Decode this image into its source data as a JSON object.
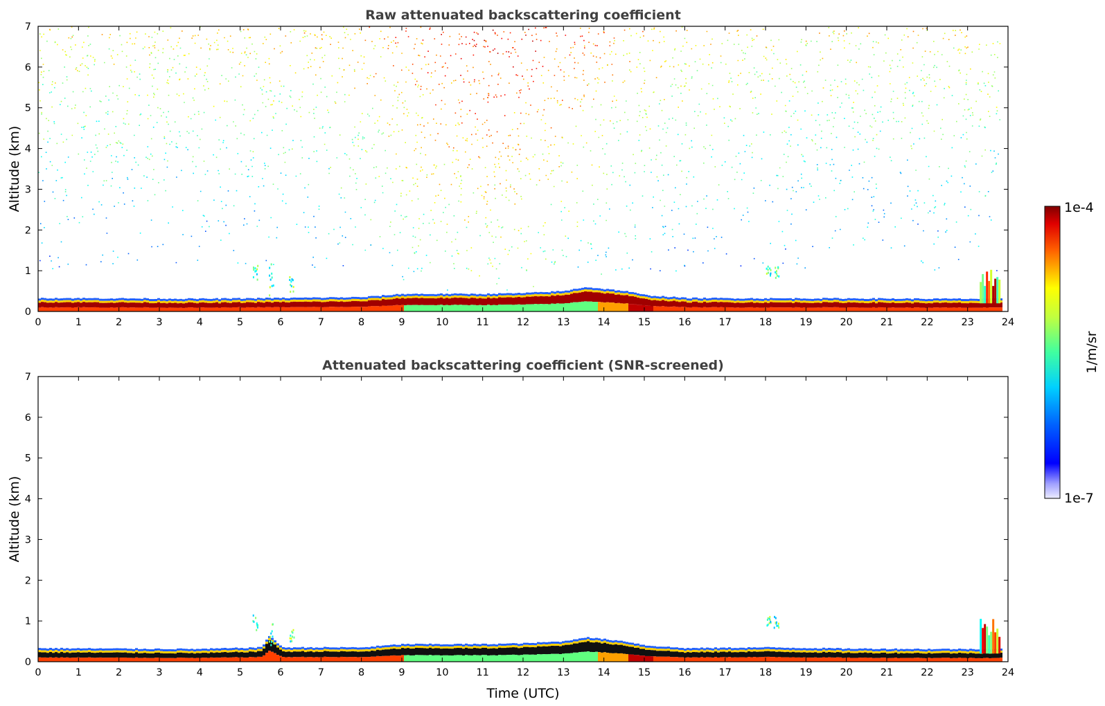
{
  "chart_data": [
    {
      "type": "heatmap",
      "id": "raw",
      "title": "Raw attenuated backscattering coefficient",
      "xlabel": "",
      "ylabel": "Altitude (km)",
      "xlim": [
        0,
        24
      ],
      "ylim": [
        0,
        7
      ],
      "xticks": [
        "0",
        "1",
        "2",
        "3",
        "4",
        "5",
        "6",
        "7",
        "8",
        "9",
        "10",
        "11",
        "12",
        "13",
        "14",
        "15",
        "16",
        "17",
        "18",
        "19",
        "20",
        "21",
        "22",
        "23",
        "24"
      ],
      "yticks": [
        "0",
        "1",
        "2",
        "3",
        "4",
        "5",
        "6",
        "7"
      ],
      "grid": false,
      "noisy": true,
      "boundary_layer_top_km": [
        [
          0,
          0.28
        ],
        [
          2,
          0.27
        ],
        [
          4,
          0.26
        ],
        [
          6,
          0.28
        ],
        [
          8,
          0.3
        ],
        [
          9,
          0.38
        ],
        [
          10,
          0.38
        ],
        [
          11,
          0.38
        ],
        [
          12,
          0.4
        ],
        [
          13,
          0.45
        ],
        [
          13.5,
          0.55
        ],
        [
          14,
          0.5
        ],
        [
          14.5,
          0.45
        ],
        [
          15,
          0.35
        ],
        [
          16,
          0.28
        ],
        [
          18,
          0.27
        ],
        [
          20,
          0.27
        ],
        [
          22,
          0.26
        ],
        [
          23,
          0.26
        ],
        [
          23.8,
          0.26
        ]
      ],
      "data_end_utc": 23.8
    },
    {
      "type": "heatmap",
      "id": "screened",
      "title": "Attenuated backscattering coefficient (SNR-screened)",
      "xlabel": "Time (UTC)",
      "ylabel": "Altitude (km)",
      "xlim": [
        0,
        24
      ],
      "ylim": [
        0,
        7
      ],
      "xticks": [
        "0",
        "1",
        "2",
        "3",
        "4",
        "5",
        "6",
        "7",
        "8",
        "9",
        "10",
        "11",
        "12",
        "13",
        "14",
        "15",
        "16",
        "17",
        "18",
        "19",
        "20",
        "21",
        "22",
        "23",
        "24"
      ],
      "yticks": [
        "0",
        "1",
        "2",
        "3",
        "4",
        "5",
        "6",
        "7"
      ],
      "grid": false,
      "noisy": false,
      "boundary_layer_top_km": [
        [
          0,
          0.28
        ],
        [
          2,
          0.27
        ],
        [
          4,
          0.26
        ],
        [
          5.5,
          0.3
        ],
        [
          5.7,
          0.6
        ],
        [
          6,
          0.3
        ],
        [
          8,
          0.3
        ],
        [
          9,
          0.38
        ],
        [
          10,
          0.38
        ],
        [
          11,
          0.38
        ],
        [
          12,
          0.4
        ],
        [
          13,
          0.45
        ],
        [
          13.5,
          0.55
        ],
        [
          14,
          0.5
        ],
        [
          14.5,
          0.45
        ],
        [
          15,
          0.35
        ],
        [
          16,
          0.28
        ],
        [
          18,
          0.3
        ],
        [
          20,
          0.27
        ],
        [
          22,
          0.26
        ],
        [
          23,
          0.26
        ],
        [
          23.8,
          0.26
        ]
      ],
      "data_end_utc": 23.8
    }
  ],
  "colorbar": {
    "label": "1/m/sr",
    "max_label": "1e-4",
    "min_label": "1e-7",
    "scale": "log",
    "colormap": "jet",
    "colors": [
      "#e8e8ff",
      "#0000ff",
      "#00c8ff",
      "#40ff80",
      "#ffff00",
      "#ff6000",
      "#800000"
    ]
  }
}
